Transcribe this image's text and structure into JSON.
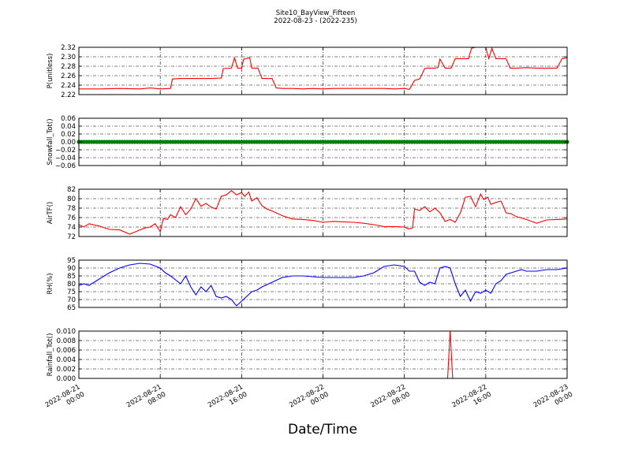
{
  "title_line1": "Site10_BayView_Fifteen",
  "title_line2": "2022-08-23 - (2022-235)",
  "xlabel": "Date/Time",
  "x_ticks": [
    {
      "t": 0,
      "l1": "2022-08-21",
      "l2": "00:00"
    },
    {
      "t": 8,
      "l1": "2022-08-21",
      "l2": "08:00"
    },
    {
      "t": 16,
      "l1": "2022-08-21",
      "l2": "16:00"
    },
    {
      "t": 24,
      "l1": "2022-08-22",
      "l2": "00:00"
    },
    {
      "t": 32,
      "l1": "2022-08-22",
      "l2": "08:00"
    },
    {
      "t": 40,
      "l1": "2022-08-22",
      "l2": "16:00"
    },
    {
      "t": 48,
      "l1": "2022-08-23",
      "l2": "00:00"
    }
  ],
  "chart_data": [
    {
      "type": "line",
      "ylabel": "P(unitless)",
      "color": "#ff0000",
      "ylim": [
        2.22,
        2.32
      ],
      "yticks": [
        2.22,
        2.24,
        2.26,
        2.28,
        2.3,
        2.32
      ],
      "ytick_labels": [
        "2.22",
        "2.24",
        "2.26",
        "2.28",
        "2.30",
        "2.32"
      ],
      "grid": true,
      "x": [
        0,
        2,
        4,
        6,
        7,
        8,
        9,
        9.2,
        10,
        11,
        12,
        13,
        14,
        14.2,
        15,
        15.3,
        15.6,
        16,
        16.2,
        16.8,
        17,
        17.6,
        18,
        19,
        19.4,
        20,
        21,
        22,
        23,
        24,
        25,
        26,
        27,
        28,
        29,
        30,
        31,
        32,
        32.5,
        33,
        33.5,
        34,
        34.2,
        35,
        35.3,
        35.5,
        36,
        36.6,
        37,
        38,
        38.3,
        38.6,
        39,
        40,
        40.3,
        40.6,
        41,
        41.4,
        42,
        42.4,
        42.7,
        43,
        44,
        45,
        46,
        47,
        47.5,
        48
      ],
      "y": [
        2.232,
        2.232,
        2.233,
        2.232,
        2.234,
        2.232,
        2.233,
        2.253,
        2.254,
        2.254,
        2.254,
        2.254,
        2.255,
        2.275,
        2.276,
        2.298,
        2.276,
        2.276,
        2.295,
        2.298,
        2.276,
        2.276,
        2.254,
        2.254,
        2.234,
        2.233,
        2.233,
        2.232,
        2.233,
        2.232,
        2.233,
        2.233,
        2.233,
        2.233,
        2.233,
        2.233,
        2.232,
        2.233,
        2.231,
        2.25,
        2.253,
        2.275,
        2.276,
        2.276,
        2.277,
        2.295,
        2.276,
        2.276,
        2.296,
        2.296,
        2.296,
        2.318,
        2.32,
        2.32,
        2.296,
        2.318,
        2.296,
        2.296,
        2.296,
        2.276,
        2.276,
        2.276,
        2.277,
        2.276,
        2.276,
        2.276,
        2.296,
        2.298
      ]
    },
    {
      "type": "scatter",
      "ylabel": "Snowfall_Tot()",
      "color": "#008000",
      "ylim": [
        -0.06,
        0.06
      ],
      "yticks": [
        -0.06,
        -0.04,
        -0.02,
        0.0,
        0.02,
        0.04,
        0.06
      ],
      "ytick_labels": [
        "−0.06",
        "−0.04",
        "−0.02",
        "0.00",
        "0.02",
        "0.04",
        "0.06"
      ],
      "grid": true,
      "x_range": [
        0,
        48
      ],
      "constant_value": 0.0,
      "point_interval_minutes": 15
    },
    {
      "type": "line",
      "ylabel": "AirTF()",
      "color": "#ff0000",
      "ylim": [
        72,
        82
      ],
      "yticks": [
        72,
        74,
        76,
        78,
        80,
        82
      ],
      "ytick_labels": [
        "72",
        "74",
        "76",
        "78",
        "80",
        "82"
      ],
      "grid": true,
      "x": [
        0,
        0.5,
        1,
        2,
        3,
        4,
        5,
        6,
        6.5,
        7,
        7.5,
        8,
        8.3,
        8.7,
        9,
        9.5,
        10,
        10.5,
        11,
        11.5,
        12,
        12.5,
        13,
        13.5,
        14,
        14.5,
        15,
        15.5,
        16,
        16.3,
        16.7,
        17,
        17.5,
        18,
        18.5,
        19,
        20,
        21,
        22,
        23,
        24,
        25,
        26,
        27,
        28,
        29,
        30,
        31,
        32,
        32.4,
        32.8,
        33,
        33.5,
        34,
        34.5,
        35,
        35.5,
        36,
        36.5,
        37,
        37.5,
        38,
        38.5,
        39,
        39.5,
        39.8,
        40.2,
        40.5,
        41,
        41.5,
        42,
        42.5,
        43,
        44,
        45,
        46,
        47,
        48
      ],
      "y": [
        74.5,
        74.0,
        74.7,
        74.2,
        73.5,
        73.4,
        72.5,
        73.4,
        73.8,
        74.0,
        74.7,
        73.0,
        75.8,
        75.6,
        76.6,
        76.0,
        78.3,
        76.6,
        77.8,
        80.0,
        78.4,
        79.0,
        78.2,
        77.8,
        80.5,
        80.8,
        81.7,
        80.8,
        81.3,
        80.5,
        81.4,
        79.5,
        80.2,
        78.5,
        77.8,
        77.4,
        76.4,
        75.7,
        75.6,
        75.4,
        75.0,
        75.2,
        75.1,
        75.0,
        74.8,
        74.5,
        74.1,
        74.1,
        74.0,
        73.6,
        73.8,
        77.8,
        77.5,
        78.3,
        77.2,
        78.0,
        77.0,
        75.2,
        75.6,
        75.0,
        77.0,
        80.3,
        80.5,
        78.3,
        81.0,
        79.8,
        80.3,
        78.8,
        79.2,
        79.5,
        77.0,
        76.8,
        76.2,
        75.6,
        74.8,
        75.5,
        75.6,
        75.7
      ]
    },
    {
      "type": "line",
      "ylabel": "RH(%)",
      "color": "#0000ff",
      "ylim": [
        65,
        95
      ],
      "yticks": [
        65,
        70,
        75,
        80,
        85,
        90,
        95
      ],
      "ytick_labels": [
        "65",
        "70",
        "75",
        "80",
        "85",
        "90",
        "95"
      ],
      "grid": true,
      "x": [
        0,
        0.5,
        1,
        2,
        3,
        4,
        5,
        6,
        7,
        8,
        8.5,
        9,
        10,
        10.5,
        11,
        11.5,
        12,
        12.5,
        13,
        13.5,
        14,
        14.5,
        15,
        15.5,
        16,
        16.5,
        17,
        17.5,
        18,
        19,
        20,
        21,
        22,
        23,
        24,
        25,
        26,
        27,
        28,
        29,
        30,
        31,
        32,
        32.5,
        33,
        33.5,
        34,
        34.5,
        35,
        35.5,
        36,
        36.5,
        37,
        37.5,
        38,
        38.5,
        39,
        39.5,
        40,
        40.5,
        41,
        41.5,
        42,
        42.5,
        43,
        43.5,
        44,
        45,
        46,
        47,
        48
      ],
      "y": [
        79,
        80,
        79,
        83,
        87,
        90,
        92,
        93,
        92.5,
        90,
        87,
        85,
        80,
        85,
        78,
        73,
        78,
        75,
        79,
        72,
        71,
        72,
        70,
        66,
        69,
        72,
        75,
        76,
        78,
        81,
        84,
        85,
        85,
        84.5,
        84,
        84,
        84,
        84,
        85,
        87,
        91,
        92,
        91,
        88,
        88,
        81,
        79,
        81,
        80,
        90,
        91,
        90,
        80,
        72,
        76,
        69,
        75,
        74,
        76,
        74,
        80,
        82,
        86,
        87,
        88,
        89,
        88,
        88,
        89,
        89,
        90
      ]
    },
    {
      "type": "line",
      "ylabel": "Rainfall_Tot()",
      "color": "#ff0000",
      "ylim": [
        0.0,
        0.01
      ],
      "yticks": [
        0.0,
        0.002,
        0.004,
        0.006,
        0.008,
        0.01
      ],
      "ytick_labels": [
        "0.000",
        "0.002",
        "0.004",
        "0.006",
        "0.008",
        "0.010"
      ],
      "grid": true,
      "x": [
        0,
        36.25,
        36.5,
        36.75,
        48
      ],
      "y": [
        0,
        0,
        0.01,
        0,
        0
      ]
    }
  ]
}
